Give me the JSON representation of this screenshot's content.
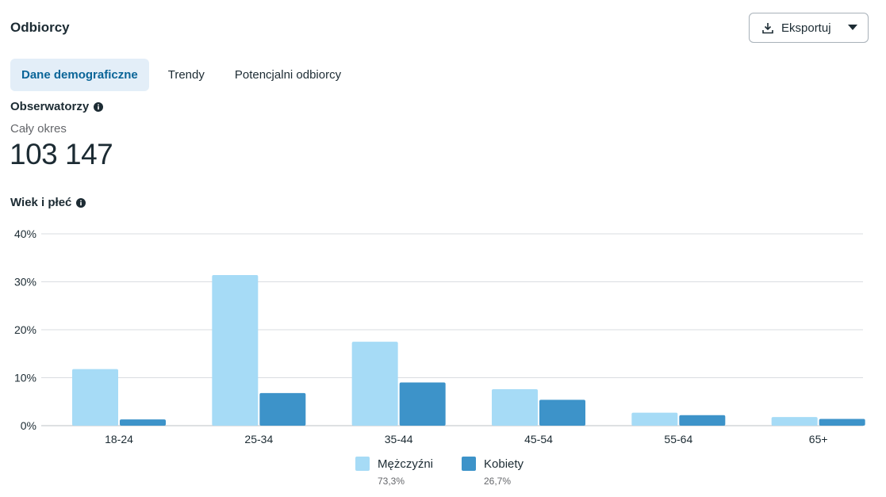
{
  "header": {
    "title": "Odbiorcy",
    "export_label": "Eksportuj"
  },
  "tabs": [
    {
      "label": "Dane demograficzne",
      "active": true
    },
    {
      "label": "Trendy",
      "active": false
    },
    {
      "label": "Potencjalni odbiorcy",
      "active": false
    }
  ],
  "followers": {
    "title": "Obserwatorzy",
    "period": "Cały okres",
    "value": "103 147"
  },
  "age_gender": {
    "title": "Wiek i płeć"
  },
  "legend": [
    {
      "name": "Mężczyźni",
      "percent": "73,3%",
      "color": "#a6dbf6"
    },
    {
      "name": "Kobiety",
      "percent": "26,7%",
      "color": "#3d93c9"
    }
  ],
  "chart_data": {
    "type": "bar",
    "categories": [
      "18-24",
      "25-34",
      "35-44",
      "45-54",
      "55-64",
      "65+"
    ],
    "series": [
      {
        "name": "Mężczyźni",
        "values": [
          11.8,
          31.4,
          17.5,
          7.6,
          2.7,
          1.8
        ],
        "color": "#a6dbf6"
      },
      {
        "name": "Kobiety",
        "values": [
          1.3,
          6.8,
          9.0,
          5.4,
          2.2,
          1.4
        ],
        "color": "#3d93c9"
      }
    ],
    "ylim": [
      0,
      40
    ],
    "yticks": [
      "0%",
      "10%",
      "20%",
      "30%",
      "40%"
    ],
    "ytick_values": [
      0,
      10,
      20,
      30,
      40
    ],
    "grid": true,
    "legend_position": "bottom"
  },
  "colors": {
    "accent": "#0a6598",
    "tab_active_bg": "#e3eef8",
    "gridline": "#dadde1"
  }
}
